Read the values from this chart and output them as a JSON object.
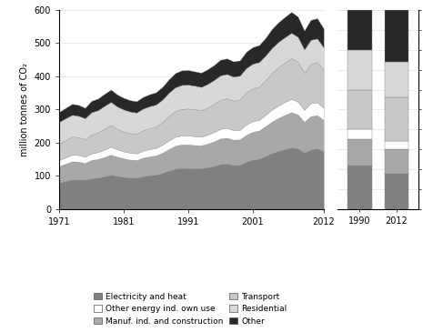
{
  "years": [
    1971,
    1972,
    1973,
    1974,
    1975,
    1976,
    1977,
    1978,
    1979,
    1980,
    1981,
    1982,
    1983,
    1984,
    1985,
    1986,
    1987,
    1988,
    1989,
    1990,
    1991,
    1992,
    1993,
    1994,
    1995,
    1996,
    1997,
    1998,
    1999,
    2000,
    2001,
    2002,
    2003,
    2004,
    2005,
    2006,
    2007,
    2008,
    2009,
    2010,
    2011,
    2012
  ],
  "series": {
    "Electricity and heat": [
      80,
      85,
      90,
      90,
      88,
      93,
      95,
      99,
      103,
      100,
      97,
      95,
      95,
      99,
      102,
      104,
      109,
      116,
      122,
      124,
      124,
      123,
      123,
      126,
      130,
      136,
      137,
      133,
      134,
      143,
      149,
      152,
      160,
      169,
      175,
      181,
      186,
      183,
      170,
      180,
      183,
      174
    ],
    "Manuf. ind. and construction": [
      50,
      52,
      54,
      53,
      51,
      55,
      56,
      58,
      61,
      58,
      56,
      54,
      53,
      56,
      57,
      58,
      61,
      65,
      69,
      71,
      71,
      70,
      69,
      71,
      74,
      77,
      78,
      76,
      76,
      81,
      84,
      85,
      90,
      95,
      100,
      103,
      106,
      102,
      93,
      100,
      100,
      95
    ],
    "Other energy ind. own use": [
      18,
      19,
      20,
      20,
      19,
      20,
      21,
      22,
      24,
      22,
      21,
      21,
      20,
      21,
      22,
      22,
      24,
      26,
      27,
      27,
      27,
      27,
      26,
      27,
      28,
      29,
      30,
      29,
      29,
      31,
      32,
      32,
      34,
      36,
      37,
      39,
      40,
      39,
      36,
      39,
      39,
      36
    ],
    "Transport": [
      50,
      52,
      55,
      54,
      52,
      57,
      59,
      63,
      65,
      62,
      60,
      59,
      59,
      62,
      63,
      65,
      68,
      74,
      78,
      80,
      81,
      81,
      80,
      82,
      85,
      88,
      89,
      89,
      91,
      97,
      99,
      100,
      105,
      111,
      116,
      119,
      123,
      120,
      112,
      119,
      121,
      115
    ],
    "Residential": [
      65,
      66,
      65,
      64,
      64,
      67,
      67,
      69,
      70,
      67,
      66,
      65,
      64,
      65,
      66,
      66,
      68,
      70,
      71,
      72,
      72,
      71,
      70,
      71,
      72,
      73,
      73,
      72,
      72,
      73,
      74,
      74,
      74,
      75,
      76,
      76,
      76,
      75,
      70,
      72,
      71,
      67
    ],
    "Other": [
      30,
      31,
      33,
      33,
      31,
      34,
      35,
      36,
      37,
      36,
      35,
      34,
      34,
      35,
      36,
      37,
      38,
      40,
      43,
      44,
      44,
      43,
      43,
      44,
      45,
      47,
      47,
      46,
      46,
      49,
      50,
      51,
      53,
      57,
      59,
      61,
      63,
      61,
      57,
      60,
      61,
      57
    ]
  },
  "bar_1990": {
    "Electricity and heat": 22,
    "Manuf. ind. and construction": 13,
    "Other energy ind. own use": 5,
    "Transport": 20,
    "Residential": 20,
    "Other": 20
  },
  "bar_2012": {
    "Electricity and heat": 18,
    "Manuf. ind. and construction": 12,
    "Other energy ind. own use": 4,
    "Transport": 22,
    "Residential": 18,
    "Other": 26
  },
  "colors": {
    "Electricity and heat": "#808080",
    "Manuf. ind. and construction": "#a8a8a8",
    "Other energy ind. own use": "#ffffff",
    "Transport": "#c8c8c8",
    "Residential": "#d8d8d8",
    "Other": "#282828"
  },
  "ylim_left": [
    0,
    600
  ],
  "ylim_right": [
    0,
    100
  ],
  "ylabel_left": "million tonnes of CO₂",
  "xticks_left": [
    1971,
    1981,
    1991,
    2001,
    2012
  ],
  "xticks_right": [
    "1990",
    "2012"
  ],
  "legend_left": [
    "Electricity and heat",
    "Manuf. ind. and construction",
    "Residential"
  ],
  "legend_right": [
    "Other energy ind. own use",
    "Transport",
    "Other"
  ]
}
